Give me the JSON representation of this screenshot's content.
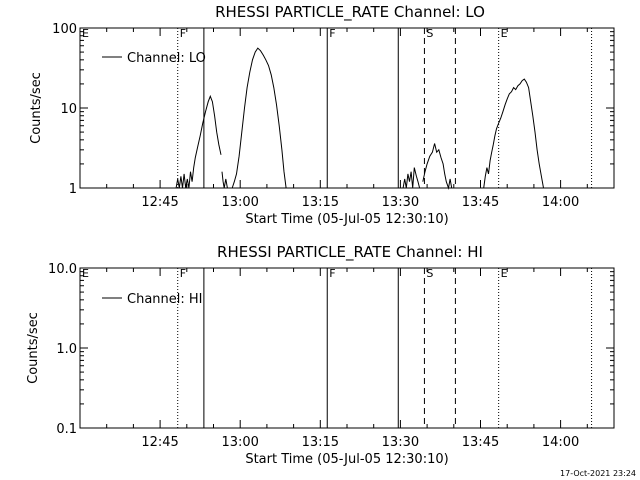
{
  "stamp": "17-Oct-2021 23:24",
  "chart_data": [
    {
      "type": "line",
      "title": "RHESSI PARTICLE_RATE Channel: LO",
      "xlabel": "Start Time (05-Jul-05 12:30:10)",
      "ylabel": "Counts/sec",
      "yscale": "log",
      "ylim": [
        1,
        100
      ],
      "xlim_minutes": [
        0,
        100
      ],
      "x_ticks": [
        "12:45",
        "13:00",
        "13:15",
        "13:30",
        "13:45",
        "14:00"
      ],
      "y_ticks": [
        "1",
        "10",
        "100"
      ],
      "legend": {
        "label": "Channel: LO",
        "placement": "top-left"
      },
      "series": [
        {
          "name": "Channel: LO",
          "segments": [
            [
              [
                18.0,
                1
              ],
              [
                18.3,
                1.3
              ],
              [
                18.6,
                1
              ],
              [
                18.9,
                1.4
              ],
              [
                19.2,
                1
              ],
              [
                19.5,
                1.5
              ],
              [
                19.8,
                1
              ],
              [
                20.1,
                1.3
              ],
              [
                20.4,
                1
              ],
              [
                20.7,
                1.6
              ],
              [
                21.0,
                1.2
              ],
              [
                21.3,
                1.8
              ],
              [
                21.6,
                2.4
              ],
              [
                22.0,
                3.2
              ],
              [
                22.5,
                4.5
              ],
              [
                23.0,
                6.5
              ],
              [
                23.5,
                9
              ],
              [
                24.0,
                12
              ],
              [
                24.4,
                14
              ],
              [
                24.8,
                12
              ],
              [
                25.2,
                8
              ],
              [
                25.6,
                5
              ],
              [
                26.0,
                3.5
              ],
              [
                26.4,
                2.6
              ]
            ],
            [
              [
                26.6,
                1.6
              ],
              [
                26.8,
                1.2
              ],
              [
                27.0,
                1
              ],
              [
                27.3,
                1.3
              ],
              [
                27.6,
                1
              ]
            ],
            [
              [
                28.5,
                1
              ],
              [
                28.9,
                1.2
              ],
              [
                29.3,
                1.5
              ],
              [
                29.8,
                2.5
              ],
              [
                30.3,
                5
              ],
              [
                30.8,
                10
              ],
              [
                31.3,
                18
              ],
              [
                31.8,
                28
              ],
              [
                32.3,
                40
              ],
              [
                32.8,
                50
              ],
              [
                33.3,
                56
              ],
              [
                33.8,
                52
              ],
              [
                34.3,
                46
              ],
              [
                34.8,
                40
              ],
              [
                35.3,
                34
              ],
              [
                35.8,
                26
              ],
              [
                36.3,
                18
              ],
              [
                36.8,
                11
              ],
              [
                37.3,
                6
              ],
              [
                37.8,
                3
              ],
              [
                38.2,
                1.6
              ],
              [
                38.6,
                1
              ]
            ],
            [
              [
                60.5,
                1
              ],
              [
                60.8,
                1.3
              ],
              [
                61.1,
                1
              ],
              [
                61.4,
                1.5
              ],
              [
                61.7,
                1.2
              ],
              [
                62.0,
                1.6
              ],
              [
                62.3,
                1
              ],
              [
                62.6,
                1.8
              ],
              [
                63.0,
                1.4
              ],
              [
                63.3,
                1.2
              ],
              [
                63.6,
                1
              ]
            ],
            [
              [
                64.2,
                1.2
              ],
              [
                64.6,
                1.6
              ],
              [
                65.0,
                2.0
              ],
              [
                65.5,
                2.5
              ],
              [
                66.0,
                2.8
              ],
              [
                66.4,
                3.6
              ],
              [
                66.8,
                2.8
              ],
              [
                67.2,
                3.0
              ],
              [
                67.6,
                2.4
              ],
              [
                68.0,
                2.0
              ],
              [
                68.3,
                1.5
              ],
              [
                68.6,
                1.2
              ],
              [
                69.0,
                1
              ],
              [
                69.3,
                1.3
              ],
              [
                69.6,
                1
              ]
            ],
            [
              [
                75.6,
                1
              ],
              [
                75.9,
                1.4
              ],
              [
                76.2,
                1.8
              ],
              [
                76.5,
                1.5
              ],
              [
                76.8,
                2.2
              ],
              [
                77.1,
                2.8
              ],
              [
                77.4,
                3.5
              ],
              [
                77.7,
                4.5
              ],
              [
                78.0,
                5.5
              ],
              [
                78.4,
                6.5
              ],
              [
                78.8,
                7.5
              ],
              [
                79.2,
                9
              ],
              [
                79.6,
                11
              ],
              [
                80.0,
                13
              ],
              [
                80.4,
                15
              ],
              [
                80.8,
                16
              ],
              [
                81.2,
                18
              ],
              [
                81.6,
                17
              ],
              [
                82.0,
                19
              ],
              [
                82.4,
                20
              ],
              [
                82.8,
                22
              ],
              [
                83.2,
                23
              ],
              [
                83.6,
                21
              ],
              [
                84.0,
                18
              ],
              [
                84.4,
                12
              ],
              [
                84.8,
                8
              ],
              [
                85.2,
                5
              ],
              [
                85.6,
                3
              ],
              [
                86.0,
                2
              ],
              [
                86.4,
                1.4
              ],
              [
                86.8,
                1
              ]
            ]
          ]
        }
      ]
    },
    {
      "type": "line",
      "title": "RHESSI PARTICLE_RATE Channel: HI",
      "xlabel": "Start Time (05-Jul-05 12:30:10)",
      "ylabel": "Counts/sec",
      "yscale": "log",
      "ylim": [
        0.1,
        10
      ],
      "xlim_minutes": [
        0,
        100
      ],
      "x_ticks": [
        "12:45",
        "13:00",
        "13:15",
        "13:30",
        "13:45",
        "14:00"
      ],
      "y_ticks": [
        "0.1",
        "1.0",
        "10.0"
      ],
      "legend": {
        "label": "Channel: HI",
        "placement": "top-left"
      },
      "series": [
        {
          "name": "Channel: HI",
          "segments": []
        }
      ]
    }
  ],
  "markers": [
    {
      "label": "E",
      "minute": 0,
      "style": "dotted"
    },
    {
      "label": "F",
      "minute": 18.3,
      "style": "dotted"
    },
    {
      "label": "",
      "minute": 23.2,
      "style": "solid"
    },
    {
      "label": "F",
      "minute": 46.3,
      "style": "solid"
    },
    {
      "label": "",
      "minute": 59.6,
      "style": "solid"
    },
    {
      "label": "S",
      "minute": 64.5,
      "style": "dashed"
    },
    {
      "label": "",
      "minute": 70.3,
      "style": "dashed"
    },
    {
      "label": "E",
      "minute": 78.4,
      "style": "dotted"
    },
    {
      "label": "",
      "minute": 95.8,
      "style": "dotted"
    }
  ]
}
